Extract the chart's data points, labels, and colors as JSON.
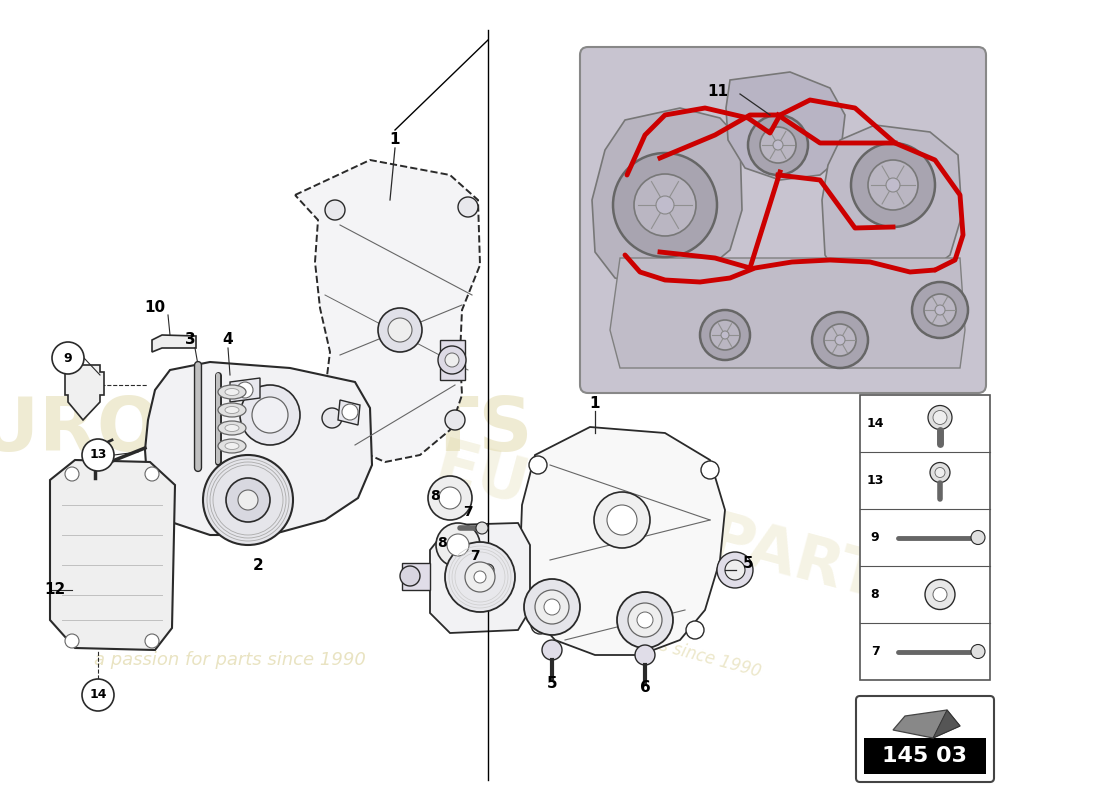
{
  "bg": "#ffffff",
  "part_number": "145 03",
  "wm1": "europeparts",
  "wm2": "a passion for parts since 1990",
  "wm_color": "#e0d8a8",
  "red": "#cc0000",
  "dg": "#2a2a2a",
  "mg": "#666666",
  "lg": "#aaaaaa",
  "eg": "#c0bcc8",
  "figsize": [
    11.0,
    8.0
  ],
  "dpi": 100
}
